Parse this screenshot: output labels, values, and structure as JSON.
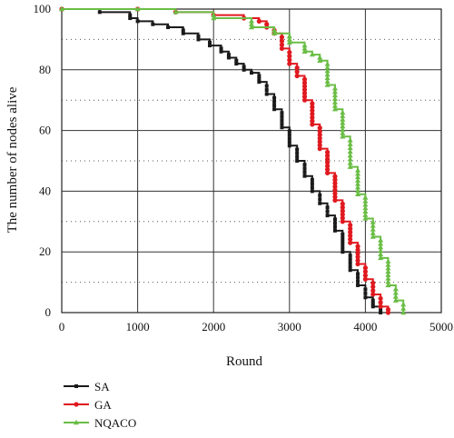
{
  "chart_data": {
    "type": "line",
    "xlabel": "Round",
    "ylabel": "The number of nodes alive",
    "xlim": [
      0,
      5000
    ],
    "ylim": [
      0,
      100
    ],
    "x_ticks": [
      0,
      1000,
      2000,
      3000,
      4000,
      5000
    ],
    "y_ticks": [
      0,
      20,
      40,
      60,
      80,
      100
    ],
    "grid": {
      "major": "solid",
      "minor": "dotted"
    },
    "legend_position": "bottom-left",
    "series": [
      {
        "name": "SA",
        "color": "#1a1a1a",
        "marker": "square",
        "x": [
          0,
          500,
          900,
          1000,
          1200,
          1400,
          1600,
          1800,
          1950,
          2100,
          2200,
          2300,
          2400,
          2500,
          2600,
          2700,
          2800,
          2900,
          3000,
          3100,
          3200,
          3300,
          3400,
          3500,
          3600,
          3700,
          3800,
          3900,
          4000,
          4100,
          4200
        ],
        "values": [
          100,
          99,
          97,
          96,
          95,
          94,
          92,
          90,
          88,
          86,
          84,
          82,
          80,
          79,
          76,
          72,
          67,
          61,
          55,
          50,
          45,
          40,
          36,
          32,
          27,
          20,
          14,
          9,
          5,
          2,
          0
        ]
      },
      {
        "name": "GA",
        "color": "#e0191f",
        "marker": "circle",
        "x": [
          0,
          1000,
          1500,
          2000,
          2400,
          2600,
          2700,
          2800,
          2900,
          3000,
          3100,
          3200,
          3300,
          3400,
          3500,
          3600,
          3700,
          3800,
          3900,
          4000,
          4100,
          4200,
          4300
        ],
        "values": [
          100,
          100,
          99,
          98,
          97,
          96,
          94,
          92,
          87,
          82,
          78,
          70,
          62,
          54,
          46,
          37,
          30,
          23,
          16,
          11,
          6,
          2,
          0
        ]
      },
      {
        "name": "NQACO",
        "color": "#6abd45",
        "marker": "triangle",
        "x": [
          0,
          1000,
          1500,
          2000,
          2500,
          2800,
          3000,
          3200,
          3300,
          3400,
          3500,
          3600,
          3700,
          3800,
          3900,
          4000,
          4100,
          4200,
          4300,
          4400,
          4500
        ],
        "values": [
          100,
          100,
          99,
          97,
          94,
          92,
          89,
          86,
          85,
          83,
          75,
          67,
          58,
          48,
          39,
          31,
          25,
          18,
          9,
          4,
          0
        ]
      }
    ]
  }
}
